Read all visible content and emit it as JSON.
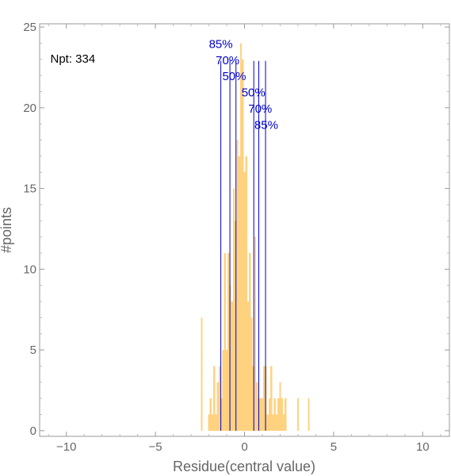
{
  "chart_data": {
    "type": "bar",
    "title": "",
    "xlabel": "Residue(central value)",
    "ylabel": "#points",
    "xlim": [
      -11.5,
      11.5
    ],
    "ylim": [
      -0.35,
      25.2
    ],
    "xticks": [
      -10,
      -5,
      0,
      5,
      10
    ],
    "xtick_labels": [
      "−10",
      "−5",
      "0",
      "5",
      "10"
    ],
    "yticks": [
      0,
      5,
      10,
      15,
      20,
      25
    ],
    "ytick_labels": [
      "0",
      "5",
      "10",
      "15",
      "20",
      "25"
    ],
    "grid": false,
    "bin_width": 0.1,
    "bins": [
      {
        "x": -2.4,
        "y": 7
      },
      {
        "x": -2.0,
        "y": 1
      },
      {
        "x": -1.9,
        "y": 2
      },
      {
        "x": -1.8,
        "y": 1
      },
      {
        "x": -1.7,
        "y": 4
      },
      {
        "x": -1.6,
        "y": 1
      },
      {
        "x": -1.5,
        "y": 3
      },
      {
        "x": -1.4,
        "y": 4
      },
      {
        "x": -1.3,
        "y": 2
      },
      {
        "x": -1.2,
        "y": 5
      },
      {
        "x": -1.1,
        "y": 11
      },
      {
        "x": -1.0,
        "y": 5
      },
      {
        "x": -0.9,
        "y": 11
      },
      {
        "x": -0.8,
        "y": 9
      },
      {
        "x": -0.7,
        "y": 8
      },
      {
        "x": -0.6,
        "y": 15
      },
      {
        "x": -0.5,
        "y": 13
      },
      {
        "x": -0.4,
        "y": 18
      },
      {
        "x": -0.3,
        "y": 17
      },
      {
        "x": -0.2,
        "y": 24
      },
      {
        "x": -0.1,
        "y": 23
      },
      {
        "x": 0.0,
        "y": 16
      },
      {
        "x": 0.1,
        "y": 17
      },
      {
        "x": 0.2,
        "y": 8
      },
      {
        "x": 0.3,
        "y": 11
      },
      {
        "x": 0.4,
        "y": 7
      },
      {
        "x": 0.5,
        "y": 4
      },
      {
        "x": 0.6,
        "y": 12
      },
      {
        "x": 0.7,
        "y": 3
      },
      {
        "x": 0.8,
        "y": 2
      },
      {
        "x": 0.9,
        "y": 2
      },
      {
        "x": 1.0,
        "y": 2
      },
      {
        "x": 1.1,
        "y": 4
      },
      {
        "x": 1.2,
        "y": 4
      },
      {
        "x": 1.3,
        "y": 1
      },
      {
        "x": 1.4,
        "y": 2
      },
      {
        "x": 1.5,
        "y": 4
      },
      {
        "x": 1.6,
        "y": 1
      },
      {
        "x": 1.7,
        "y": 2
      },
      {
        "x": 1.8,
        "y": 1
      },
      {
        "x": 1.9,
        "y": 2
      },
      {
        "x": 2.0,
        "y": 3
      },
      {
        "x": 2.1,
        "y": 2
      },
      {
        "x": 2.2,
        "y": 1
      },
      {
        "x": 2.3,
        "y": 2
      },
      {
        "x": 3.0,
        "y": 2
      },
      {
        "x": 3.6,
        "y": 2
      }
    ],
    "bar_color": "#ffd27f",
    "line_color": "#0000cc",
    "quantile_lines": [
      {
        "x": -1.33,
        "y_top": 22.9
      },
      {
        "x": -0.82,
        "y_top": 22.9
      },
      {
        "x": -0.48,
        "y_top": 22.9
      },
      {
        "x": 0.52,
        "y_top": 22.9
      },
      {
        "x": 0.8,
        "y_top": 22.9
      },
      {
        "x": 1.18,
        "y_top": 22.9
      }
    ],
    "annotations": [
      {
        "text": "Npt: 334",
        "x": -10.9,
        "y": 22.8,
        "color": "#000000",
        "anchor": "start"
      },
      {
        "text": "85%",
        "x": -1.33,
        "y": 23.7,
        "color": "#0000cc",
        "anchor": "middle"
      },
      {
        "text": "70%",
        "x": -0.95,
        "y": 22.7,
        "color": "#0000cc",
        "anchor": "middle"
      },
      {
        "text": "50%",
        "x": -0.58,
        "y": 21.7,
        "color": "#0000cc",
        "anchor": "middle"
      },
      {
        "text": "50%",
        "x": 0.5,
        "y": 20.7,
        "color": "#0000cc",
        "anchor": "middle"
      },
      {
        "text": "70%",
        "x": 0.88,
        "y": 19.7,
        "color": "#0000cc",
        "anchor": "middle"
      },
      {
        "text": "85%",
        "x": 1.22,
        "y": 18.7,
        "color": "#0000cc",
        "anchor": "middle"
      }
    ]
  }
}
